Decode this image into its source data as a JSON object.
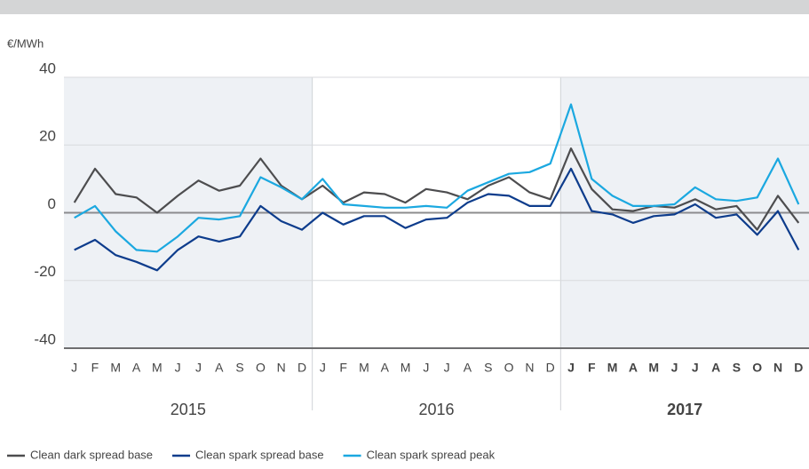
{
  "chart_data": {
    "type": "line",
    "y_unit": "€/MWh",
    "categories": [
      "J",
      "F",
      "M",
      "A",
      "M",
      "J",
      "J",
      "A",
      "S",
      "O",
      "N",
      "D",
      "J",
      "F",
      "M",
      "A",
      "M",
      "J",
      "J",
      "A",
      "S",
      "O",
      "N",
      "D",
      "J",
      "F",
      "M",
      "A",
      "M",
      "J",
      "J",
      "A",
      "S",
      "O",
      "N",
      "D"
    ],
    "years": [
      {
        "label": "2015",
        "shaded": true,
        "bold": false
      },
      {
        "label": "2016",
        "shaded": false,
        "bold": false
      },
      {
        "label": "2017",
        "shaded": true,
        "bold": true
      }
    ],
    "ylim": [
      -40,
      40
    ],
    "yticks": [
      -40,
      -20,
      0,
      20,
      40
    ],
    "grid": true,
    "legend": "bottom-left",
    "series": [
      {
        "name": "Clean dark spread base",
        "color": "#4d4d4f",
        "values": [
          3,
          13,
          5.5,
          4.5,
          0,
          5,
          9.5,
          6.5,
          8,
          16,
          8,
          4,
          8,
          3,
          6,
          5.5,
          3,
          7,
          6,
          4,
          8,
          10.5,
          6,
          4,
          19,
          7,
          1,
          0.5,
          2,
          1.5,
          4,
          1,
          2,
          -5,
          5,
          -3
        ]
      },
      {
        "name": "Clean spark spread base",
        "color": "#0d3c8c",
        "values": [
          -11,
          -8,
          -12.5,
          -14.5,
          -17,
          -11,
          -7,
          -8.5,
          -7,
          2,
          -2.5,
          -5,
          0,
          -3.5,
          -1,
          -1,
          -4.5,
          -2,
          -1.5,
          3,
          5.5,
          5,
          2,
          2,
          13,
          0.5,
          -0.5,
          -3,
          -1,
          -0.5,
          2.5,
          -1.5,
          -0.5,
          -6.5,
          0.5,
          -11
        ]
      },
      {
        "name": "Clean spark spread peak",
        "color": "#1ba8e0",
        "values": [
          -1.5,
          2,
          -5.5,
          -11,
          -11.5,
          -7,
          -1.5,
          -2,
          -1,
          10.5,
          7.5,
          4,
          10,
          2.5,
          2,
          1.5,
          1.5,
          2,
          1.5,
          6.5,
          9,
          11.5,
          12,
          14.5,
          32,
          10,
          5,
          2,
          2,
          2.5,
          7.5,
          4,
          3.5,
          4.5,
          16,
          2.5
        ]
      }
    ]
  }
}
